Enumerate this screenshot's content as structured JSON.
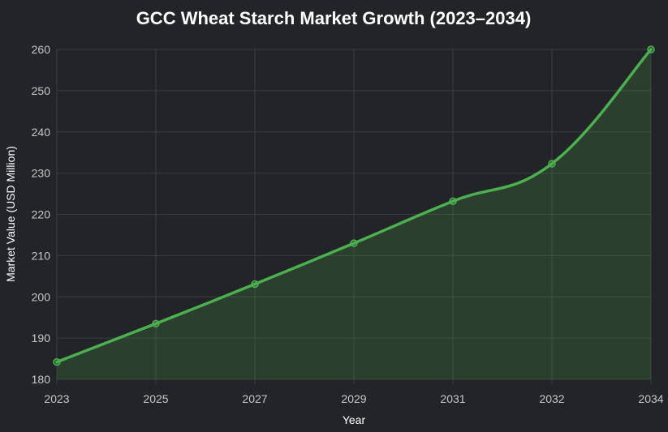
{
  "colors": {
    "background": "#232427",
    "grid": "#3a3b3f",
    "line": "#4caf50",
    "fill": "rgba(76,175,80,0.2)",
    "text": "#ffffff",
    "tick": "#c8c8c8"
  },
  "chart_data": {
    "type": "area",
    "title": "GCC Wheat Starch Market Growth (2023–2034)",
    "xlabel": "Year",
    "ylabel": "Market Value (USD Million)",
    "categories": [
      "2023",
      "2025",
      "2027",
      "2029",
      "2031",
      "2032",
      "2034"
    ],
    "series": [
      {
        "values": [
          184.2,
          193.5,
          203.1,
          213.0,
          223.2,
          232.3,
          260.0
        ]
      }
    ],
    "ylim": [
      180,
      260
    ],
    "yticks": [
      180,
      190,
      200,
      210,
      220,
      230,
      240,
      250,
      260
    ],
    "grid": true,
    "smooth": true
  }
}
